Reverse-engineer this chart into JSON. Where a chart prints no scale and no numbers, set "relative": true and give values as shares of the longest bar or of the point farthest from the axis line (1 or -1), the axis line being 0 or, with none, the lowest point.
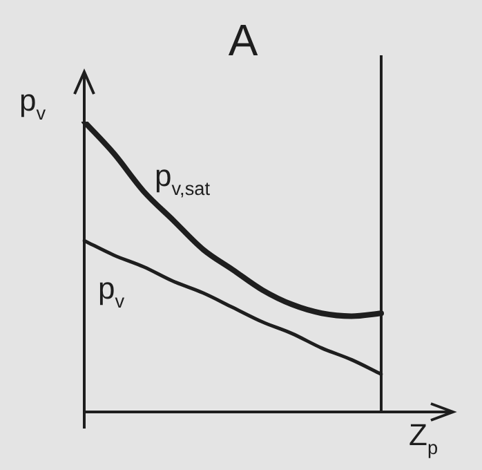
{
  "chart_data": {
    "type": "line",
    "title": "A",
    "xlabel": "Z$_{p}$",
    "ylabel": "p$_{v}$",
    "relative": true,
    "categories": [
      null,
      null,
      null,
      null,
      null,
      null,
      null,
      null,
      null,
      null,
      null
    ],
    "series": [
      {
        "name": "p$_{v,sat}$",
        "color": "#1e1e1e",
        "values": [
          1,
          0.89,
          0.76,
          0.66,
          0.56,
          0.49,
          0.42,
          0.37,
          0.34,
          0.33,
          0.34
        ]
      },
      {
        "name": "p$_{v}$",
        "color": "#1e1e1e",
        "values": [
          0.59,
          0.54,
          0.5,
          0.45,
          0.41,
          0.36,
          0.31,
          0.27,
          0.22,
          0.18,
          0.13
        ]
      }
    ],
    "grid": false,
    "legend": false,
    "marker": "none",
    "line_style": "solid",
    "tick_labels": false
  }
}
